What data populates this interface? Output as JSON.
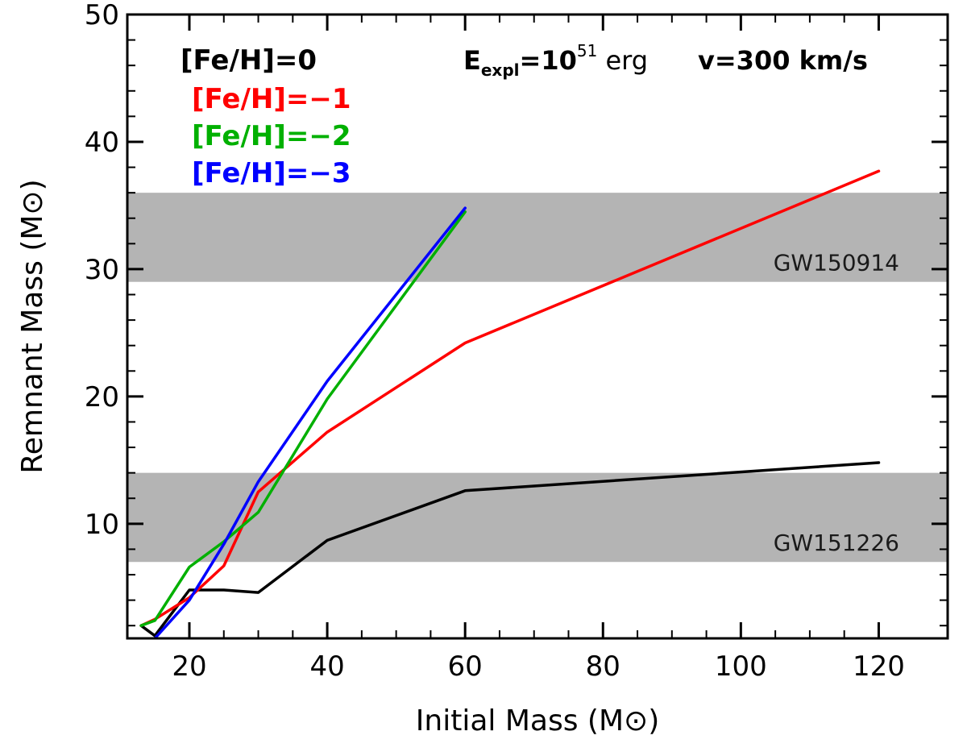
{
  "chart_data": {
    "type": "line",
    "xlabel": "Initial Mass (M",
    "xlabel_unit_symbol": "⊙",
    "ylabel": "Remnant Mass (M",
    "ylabel_unit_symbol": "⊙",
    "xlim": [
      11,
      130
    ],
    "ylim": [
      1,
      50
    ],
    "x_ticks": [
      20,
      40,
      60,
      80,
      100,
      120
    ],
    "y_ticks": [
      10,
      20,
      30,
      40,
      50
    ],
    "grid": false,
    "legend_position": "top-left",
    "annotation": {
      "prefix": "E",
      "subscript": "expl",
      "equals": "=10",
      "superscript": "51",
      "unit": " erg",
      "velocity_prefix": "v",
      "velocity_value": "=300 km/s"
    },
    "bands": [
      {
        "label": "GW150914",
        "y0": 29,
        "y1": 36,
        "color": "#b4b4b4"
      },
      {
        "label": "GW151226",
        "y0": 7,
        "y1": 14,
        "color": "#b4b4b4"
      }
    ],
    "series": [
      {
        "name_prefix": "[Fe/H]",
        "name_value": "=0",
        "color": "#000000",
        "x": [
          13,
          15,
          20,
          25,
          30,
          40,
          60,
          120
        ],
        "y": [
          2.0,
          1.2,
          4.8,
          4.8,
          4.6,
          8.7,
          12.6,
          14.8
        ]
      },
      {
        "name_prefix": "[Fe/H]",
        "name_value": "=−1",
        "color": "#ff0000",
        "x": [
          13,
          15,
          20,
          25,
          30,
          40,
          60,
          120
        ],
        "y": [
          2.0,
          2.5,
          4.2,
          6.7,
          12.5,
          17.2,
          24.2,
          37.7
        ]
      },
      {
        "name_prefix": "[Fe/H]",
        "name_value": "=−2",
        "color": "#00b000",
        "x": [
          13,
          15,
          20,
          25,
          30,
          40,
          60
        ],
        "y": [
          2.0,
          2.4,
          6.6,
          8.6,
          10.9,
          19.8,
          34.5
        ]
      },
      {
        "name_prefix": "[Fe/H]",
        "name_value": "=−3",
        "color": "#0000ff",
        "x": [
          15,
          20,
          25,
          30,
          40,
          60
        ],
        "y": [
          1.0,
          4.0,
          8.4,
          13.3,
          21.2,
          34.8
        ]
      }
    ]
  }
}
